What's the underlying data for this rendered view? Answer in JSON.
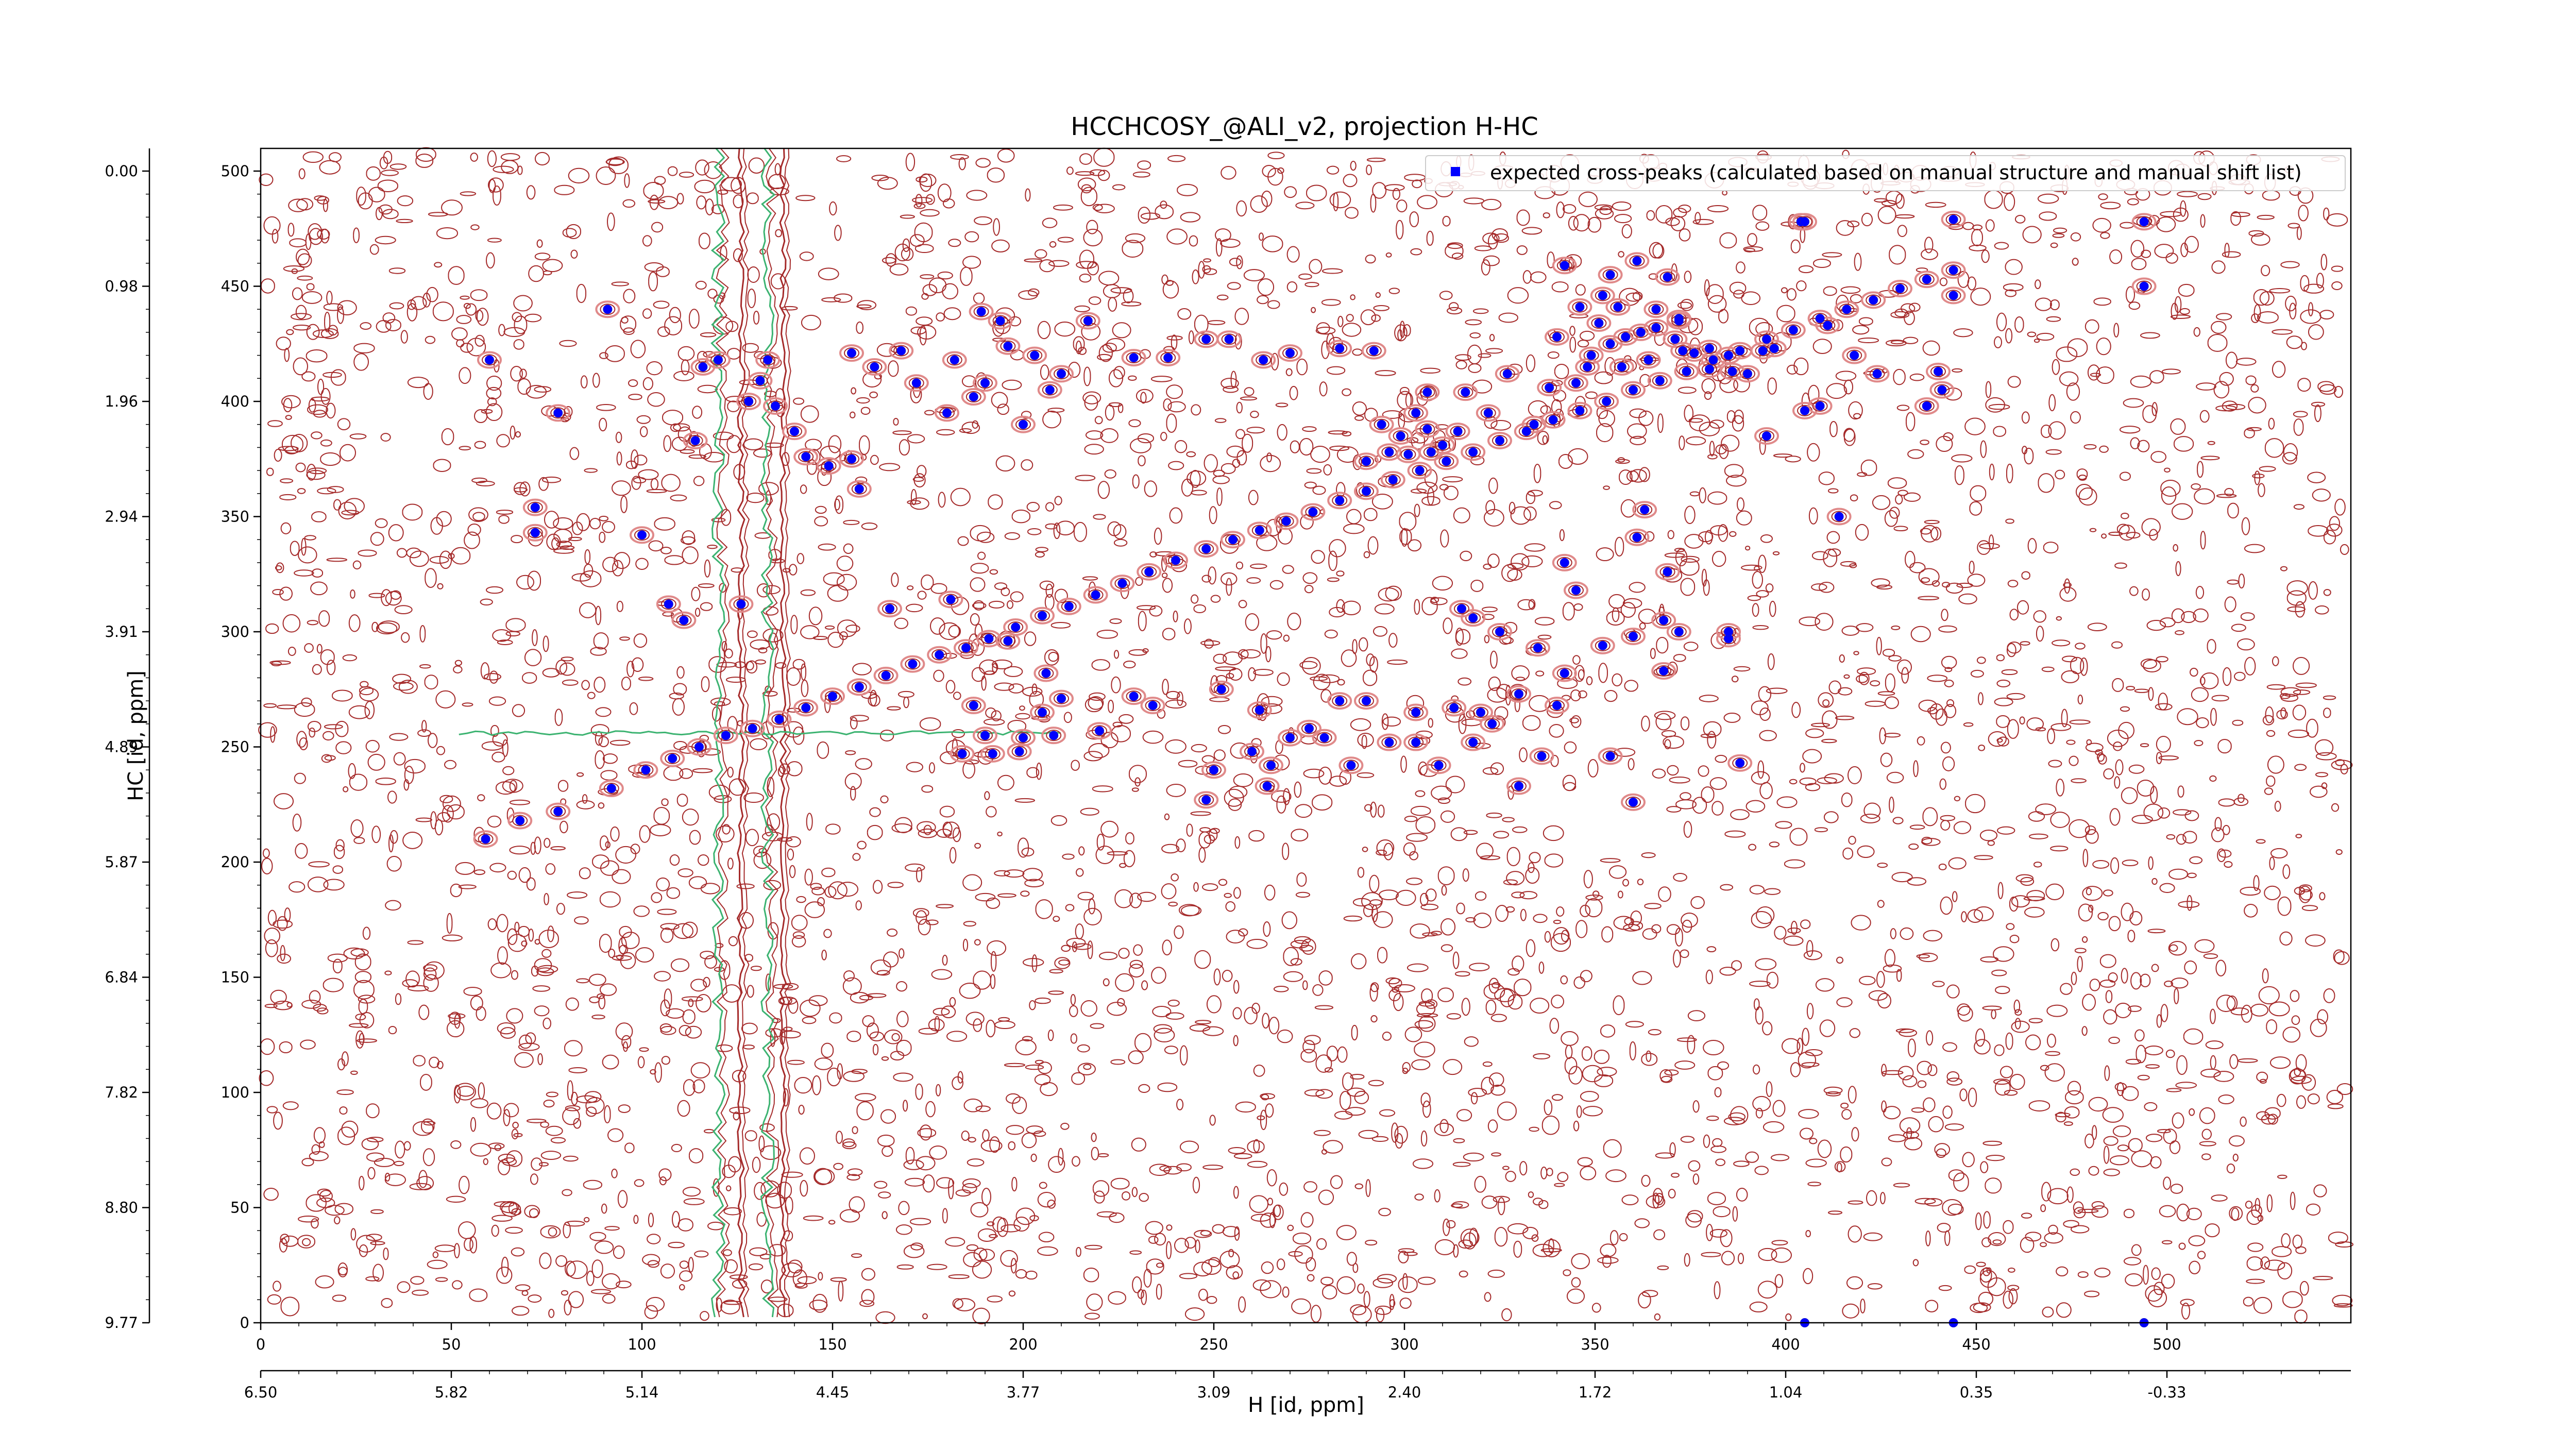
{
  "chart_data": {
    "type": "scatter",
    "title": "HCCHCOSY_@ALI_v2, projection H-HC",
    "xlabel": "H [id, ppm]",
    "ylabel": "HC [id, ppm]",
    "xlim": [
      0,
      549
    ],
    "ylim": [
      0,
      510
    ],
    "x_index_ticks": [
      "0",
      "50",
      "100",
      "150",
      "200",
      "250",
      "300",
      "350",
      "400",
      "450",
      "500"
    ],
    "x_ppm_ticks": [
      {
        "at": 0,
        "label": "6.50"
      },
      {
        "at": 50,
        "label": "5.82"
      },
      {
        "at": 100,
        "label": "5.14"
      },
      {
        "at": 150,
        "label": "4.45"
      },
      {
        "at": 200,
        "label": "3.77"
      },
      {
        "at": 250,
        "label": "3.09"
      },
      {
        "at": 300,
        "label": "2.40"
      },
      {
        "at": 350,
        "label": "1.72"
      },
      {
        "at": 400,
        "label": "1.04"
      },
      {
        "at": 450,
        "label": "0.35"
      },
      {
        "at": 500,
        "label": "-0.33"
      }
    ],
    "y_index_ticks": [
      "0",
      "50",
      "100",
      "150",
      "200",
      "250",
      "300",
      "350",
      "400",
      "450",
      "500"
    ],
    "y_ppm_ticks": [
      {
        "at": 0,
        "label": "9.77"
      },
      {
        "at": 50,
        "label": "8.80"
      },
      {
        "at": 100,
        "label": "7.82"
      },
      {
        "at": 150,
        "label": "6.84"
      },
      {
        "at": 200,
        "label": "5.87"
      },
      {
        "at": 250,
        "label": "4.89"
      },
      {
        "at": 300,
        "label": "3.91"
      },
      {
        "at": 350,
        "label": "2.94"
      },
      {
        "at": 400,
        "label": "1.96"
      },
      {
        "at": 450,
        "label": "0.98"
      },
      {
        "at": 500,
        "label": "0.00"
      }
    ],
    "legend": {
      "position": "top-right",
      "label": "expected cross-peaks (calculated based on manual structure and manual shift list)"
    },
    "colors": {
      "points": "#0000ff",
      "contour_positive": "#a52a2a",
      "contour_negative": "#3cb371",
      "contour_strong": "#e08a8a"
    },
    "series": [
      {
        "points": [
          [
            101,
            240
          ],
          [
            108,
            245
          ],
          [
            115,
            250
          ],
          [
            122,
            255
          ],
          [
            129,
            258
          ],
          [
            136,
            262
          ],
          [
            143,
            267
          ],
          [
            150,
            272
          ],
          [
            157,
            276
          ],
          [
            164,
            281
          ],
          [
            171,
            286
          ],
          [
            178,
            290
          ],
          [
            185,
            293
          ],
          [
            191,
            297
          ],
          [
            198,
            302
          ],
          [
            205,
            307
          ],
          [
            212,
            311
          ],
          [
            219,
            316
          ],
          [
            226,
            321
          ],
          [
            233,
            326
          ],
          [
            240,
            331
          ],
          [
            248,
            336
          ],
          [
            255,
            340
          ],
          [
            262,
            344
          ],
          [
            269,
            348
          ],
          [
            276,
            352
          ],
          [
            283,
            357
          ],
          [
            290,
            361
          ],
          [
            297,
            366
          ],
          [
            304,
            370
          ],
          [
            311,
            374
          ],
          [
            318,
            378
          ],
          [
            325,
            383
          ],
          [
            332,
            387
          ],
          [
            339,
            392
          ],
          [
            346,
            396
          ],
          [
            353,
            400
          ],
          [
            360,
            405
          ],
          [
            367,
            409
          ],
          [
            374,
            413
          ],
          [
            381,
            418
          ],
          [
            388,
            422
          ],
          [
            395,
            427
          ],
          [
            402,
            431
          ],
          [
            409,
            436
          ],
          [
            416,
            440
          ],
          [
            423,
            444
          ],
          [
            430,
            449
          ],
          [
            437,
            453
          ],
          [
            444,
            457
          ],
          [
            59,
            210
          ],
          [
            68,
            218
          ],
          [
            78,
            222
          ],
          [
            92,
            232
          ],
          [
            60,
            418
          ],
          [
            78,
            395
          ],
          [
            91,
            440
          ],
          [
            72,
            354
          ],
          [
            72,
            343
          ],
          [
            100,
            342
          ],
          [
            107,
            312
          ],
          [
            111,
            305
          ],
          [
            114,
            383
          ],
          [
            116,
            415
          ],
          [
            120,
            418
          ],
          [
            128,
            400
          ],
          [
            131,
            409
          ],
          [
            133,
            418
          ],
          [
            126,
            312
          ],
          [
            135,
            398
          ],
          [
            140,
            387
          ],
          [
            143,
            376
          ],
          [
            149,
            372
          ],
          [
            155,
            375
          ],
          [
            157,
            362
          ],
          [
            155,
            421
          ],
          [
            161,
            415
          ],
          [
            168,
            422
          ],
          [
            172,
            408
          ],
          [
            180,
            395
          ],
          [
            182,
            418
          ],
          [
            187,
            402
          ],
          [
            190,
            408
          ],
          [
            196,
            424
          ],
          [
            200,
            390
          ],
          [
            203,
            420
          ],
          [
            189,
            439
          ],
          [
            194,
            435
          ],
          [
            207,
            405
          ],
          [
            210,
            412
          ],
          [
            217,
            435
          ],
          [
            229,
            419
          ],
          [
            238,
            419
          ],
          [
            248,
            427
          ],
          [
            254,
            427
          ],
          [
            263,
            418
          ],
          [
            270,
            421
          ],
          [
            283,
            423
          ],
          [
            292,
            422
          ],
          [
            306,
            404
          ],
          [
            316,
            404
          ],
          [
            327,
            412
          ],
          [
            340,
            428
          ],
          [
            342,
            459
          ],
          [
            361,
            461
          ],
          [
            369,
            454
          ],
          [
            372,
            436
          ],
          [
            385,
            420
          ],
          [
            397,
            423
          ],
          [
            390,
            412
          ],
          [
            411,
            433
          ],
          [
            418,
            420
          ],
          [
            424,
            412
          ],
          [
            440,
            413
          ],
          [
            441,
            405
          ],
          [
            444,
            446
          ],
          [
            395,
            385
          ],
          [
            414,
            350
          ],
          [
            437,
            398
          ],
          [
            405,
            396
          ],
          [
            409,
            398
          ],
          [
            165,
            310
          ],
          [
            181,
            314
          ],
          [
            196,
            296
          ],
          [
            206,
            282
          ],
          [
            210,
            271
          ],
          [
            220,
            257
          ],
          [
            229,
            272
          ],
          [
            234,
            268
          ],
          [
            252,
            275
          ],
          [
            262,
            266
          ],
          [
            275,
            258
          ],
          [
            283,
            270
          ],
          [
            290,
            270
          ],
          [
            303,
            265
          ],
          [
            313,
            267
          ],
          [
            320,
            265
          ],
          [
            330,
            273
          ],
          [
            340,
            268
          ],
          [
            342,
            282
          ],
          [
            335,
            293
          ],
          [
            325,
            300
          ],
          [
            318,
            306
          ],
          [
            315,
            310
          ],
          [
            345,
            318
          ],
          [
            342,
            330
          ],
          [
            352,
            294
          ],
          [
            360,
            298
          ],
          [
            354,
            246
          ],
          [
            360,
            226
          ],
          [
            372,
            300
          ],
          [
            385,
            297
          ],
          [
            361,
            341
          ],
          [
            363,
            353
          ],
          [
            369,
            326
          ],
          [
            336,
            246
          ],
          [
            330,
            233
          ],
          [
            323,
            260
          ],
          [
            318,
            252
          ],
          [
            309,
            242
          ],
          [
            303,
            252
          ],
          [
            296,
            252
          ],
          [
            286,
            242
          ],
          [
            279,
            254
          ],
          [
            270,
            254
          ],
          [
            260,
            248
          ],
          [
            250,
            240
          ],
          [
            248,
            227
          ],
          [
            265,
            242
          ],
          [
            264,
            233
          ],
          [
            385,
            300
          ],
          [
            388,
            243
          ],
          [
            368,
            283
          ],
          [
            368,
            305
          ],
          [
            184,
            247
          ],
          [
            192,
            247
          ],
          [
            199,
            248
          ],
          [
            190,
            255
          ],
          [
            187,
            268
          ],
          [
            208,
            255
          ],
          [
            200,
            254
          ],
          [
            205,
            265
          ],
          [
            290,
            374
          ],
          [
            296,
            378
          ],
          [
            301,
            377
          ],
          [
            307,
            378
          ],
          [
            294,
            390
          ],
          [
            299,
            385
          ],
          [
            306,
            388
          ],
          [
            310,
            381
          ],
          [
            303,
            395
          ],
          [
            314,
            387
          ],
          [
            322,
            395
          ],
          [
            334,
            390
          ],
          [
            338,
            406
          ],
          [
            345,
            408
          ],
          [
            349,
            420
          ],
          [
            354,
            425
          ],
          [
            358,
            428
          ],
          [
            362,
            430
          ],
          [
            366,
            432
          ],
          [
            371,
            427
          ],
          [
            380,
            423
          ],
          [
            376,
            421
          ],
          [
            351,
            434
          ],
          [
            356,
            441
          ],
          [
            346,
            441
          ],
          [
            348,
            415
          ],
          [
            357,
            415
          ],
          [
            364,
            418
          ],
          [
            373,
            422
          ],
          [
            380,
            414
          ],
          [
            386,
            413
          ],
          [
            394,
            422
          ],
          [
            354,
            455
          ],
          [
            352,
            446
          ],
          [
            372,
            435
          ],
          [
            366,
            440
          ],
          [
            404,
            478
          ],
          [
            405,
            478
          ],
          [
            444,
            479
          ],
          [
            494,
            478
          ],
          [
            494,
            450
          ],
          [
            405,
            0
          ],
          [
            444,
            0
          ],
          [
            494,
            0
          ]
        ]
      }
    ]
  }
}
